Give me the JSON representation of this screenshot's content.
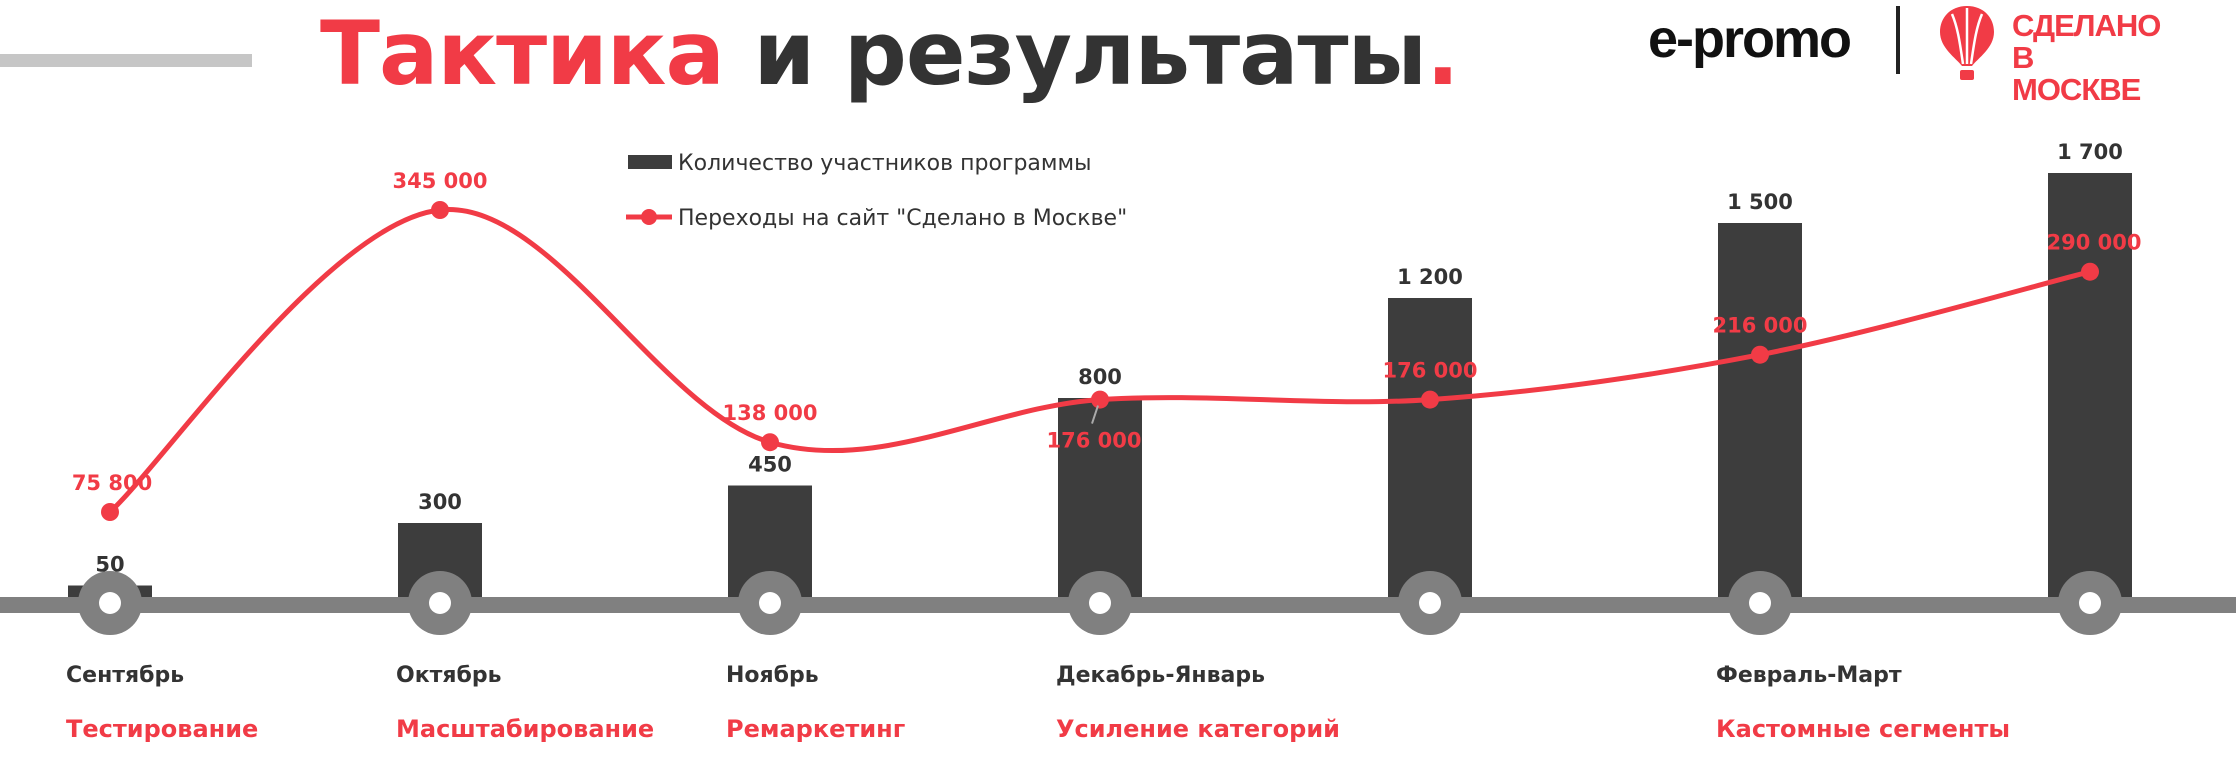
{
  "header": {
    "title_accent": "Тактика",
    "title_rest": " и результаты",
    "title_dot": "."
  },
  "logos": {
    "epromo": "e-promo",
    "made_line1": "СДЕЛАНО",
    "made_line2": "В МОСКВЕ"
  },
  "colors": {
    "accent": "#f13b46",
    "bar": "#3d3d3d",
    "timeline": "#808080",
    "text_dark": "#333333"
  },
  "chart_data": {
    "type": "bar",
    "categories": [
      "Сентябрь",
      "Октябрь",
      "Ноябрь",
      "Декабрь-Январь",
      "",
      "Февраль-Март",
      ""
    ],
    "phases": [
      "Тестирование",
      "Масштабирование",
      "Ремаркетинг",
      "Усиление категорий",
      "",
      "Кастомные сегменты",
      ""
    ],
    "series": [
      {
        "name": "Количество участников программы",
        "type": "bar",
        "values": [
          50,
          300,
          450,
          800,
          1200,
          1500,
          1700
        ],
        "labels": [
          "50",
          "300",
          "450",
          "800",
          "1 200",
          "1 500",
          "1 700"
        ]
      },
      {
        "name": "Переходы на сайт \"Сделано в Москве\"",
        "type": "line",
        "values": [
          75800,
          345000,
          138000,
          176000,
          176000,
          216000,
          290000
        ],
        "labels": [
          "75 800",
          "345 000",
          "138 000",
          "176 000",
          "176 000",
          "216 000",
          "290 000"
        ]
      }
    ],
    "bar_axis_range": [
      0,
      1700
    ],
    "line_axis_range": [
      0,
      345000
    ],
    "legend_position": "top-center",
    "grid": false
  }
}
